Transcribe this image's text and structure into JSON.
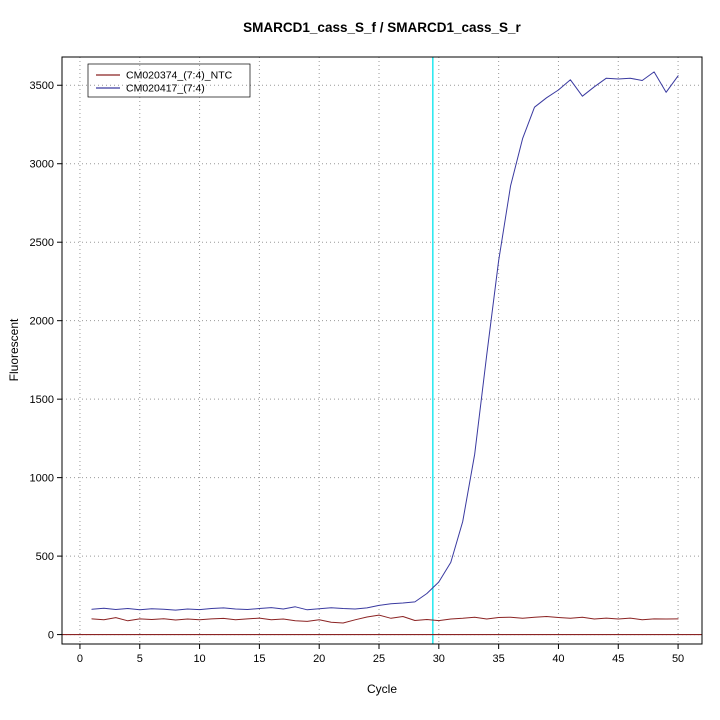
{
  "chart_data": {
    "type": "line",
    "title": "SMARCD1_cass_S_f / SMARCD1_cass_S_r",
    "xlabel": "Cycle",
    "ylabel": "Fluorescent",
    "xlim": [
      -1.5,
      52
    ],
    "ylim": [
      -60,
      3680
    ],
    "x_ticks": [
      0,
      5,
      10,
      15,
      20,
      25,
      30,
      35,
      40,
      45,
      50
    ],
    "y_ticks": [
      0,
      500,
      1000,
      1500,
      2000,
      2500,
      3000,
      3500
    ],
    "grid": "dotted",
    "grid_color": "#999999",
    "legend_position": "top-left",
    "threshold_line": {
      "y": 0,
      "color": "#8B2323"
    },
    "ct_line": {
      "x": 29.5,
      "color": "#00E5EE"
    },
    "series": [
      {
        "name": "CM020374_(7:4)_NTC",
        "color": "#8B2323",
        "x": [
          1,
          2,
          3,
          4,
          5,
          6,
          7,
          8,
          9,
          10,
          11,
          12,
          13,
          14,
          15,
          16,
          17,
          18,
          19,
          20,
          21,
          22,
          23,
          24,
          25,
          26,
          27,
          28,
          29,
          30,
          31,
          32,
          33,
          34,
          35,
          36,
          37,
          38,
          39,
          40,
          41,
          42,
          43,
          44,
          45,
          46,
          47,
          48,
          49,
          50
        ],
        "values": [
          100,
          94,
          108,
          88,
          100,
          96,
          101,
          93,
          99,
          95,
          100,
          103,
          94,
          100,
          105,
          95,
          99,
          88,
          84,
          95,
          78,
          74,
          94,
          112,
          124,
          104,
          115,
          90,
          96,
          89,
          99,
          104,
          110,
          99,
          109,
          111,
          104,
          110,
          115,
          109,
          104,
          110,
          99,
          105,
          99,
          105,
          94,
          100,
          99,
          100
        ]
      },
      {
        "name": "CM020417_(7:4)",
        "color": "#3A3AA0",
        "x": [
          1,
          2,
          3,
          4,
          5,
          6,
          7,
          8,
          9,
          10,
          11,
          12,
          13,
          14,
          15,
          16,
          17,
          18,
          19,
          20,
          21,
          22,
          23,
          24,
          25,
          26,
          27,
          28,
          29,
          30,
          31,
          32,
          33,
          34,
          35,
          36,
          37,
          38,
          39,
          40,
          41,
          42,
          43,
          44,
          45,
          46,
          47,
          48,
          49,
          50
        ],
        "values": [
          162,
          168,
          160,
          166,
          158,
          165,
          162,
          156,
          163,
          159,
          166,
          170,
          163,
          160,
          166,
          172,
          163,
          177,
          158,
          164,
          171,
          166,
          163,
          170,
          186,
          196,
          201,
          208,
          262,
          335,
          460,
          720,
          1150,
          1780,
          2380,
          2860,
          3160,
          3360,
          3420,
          3470,
          3535,
          3430,
          3490,
          3545,
          3540,
          3545,
          3530,
          3585,
          3455,
          3560
        ]
      }
    ]
  }
}
